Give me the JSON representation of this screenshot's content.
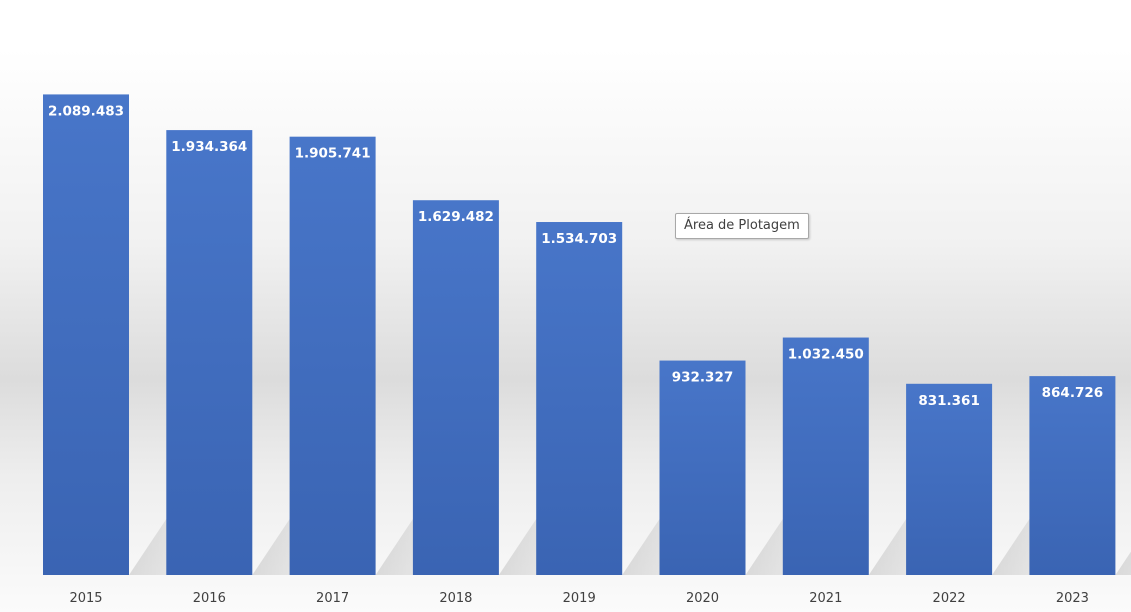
{
  "chart_data": {
    "type": "bar",
    "title": "",
    "xlabel": "",
    "ylabel": "",
    "categories": [
      "2015",
      "2016",
      "2017",
      "2018",
      "2019",
      "2020",
      "2021",
      "2022",
      "2023"
    ],
    "values": [
      2089483,
      1934364,
      1905741,
      1629482,
      1534703,
      932327,
      1032450,
      831361,
      864726
    ],
    "data_labels": [
      "2.089.483",
      "1.934.364",
      "1.905.741",
      "1.629.482",
      "1.534.703",
      "932.327",
      "1.032.450",
      "831.361",
      "864.726"
    ],
    "ylim": [
      0,
      2500000
    ],
    "grid": false,
    "legend": false,
    "bar_color": "#4472c4"
  },
  "tooltip": {
    "text": "Área de Plotagem"
  }
}
